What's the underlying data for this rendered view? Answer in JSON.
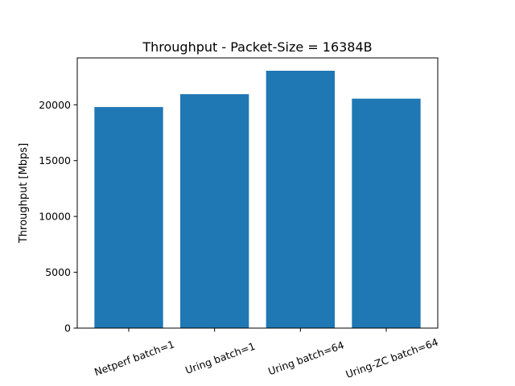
{
  "chart_data": {
    "type": "bar",
    "title": "Throughput - Packet-Size = 16384B",
    "xlabel": "",
    "ylabel": "Throughput [Mbps]",
    "categories": [
      "Netperf batch=1",
      "Uring batch=1",
      "Uring batch=64",
      "Uring-ZC batch=64"
    ],
    "values": [
      19800,
      20950,
      23050,
      20550
    ],
    "ylim": [
      0,
      24200
    ],
    "yticks": [
      0,
      5000,
      10000,
      15000,
      20000
    ],
    "ytick_labels": [
      "0",
      "5000",
      "10000",
      "15000",
      "20000"
    ],
    "bar_color": "#1f77b4",
    "grid": false,
    "legend": "none",
    "xtick_rotation_deg": -20
  }
}
